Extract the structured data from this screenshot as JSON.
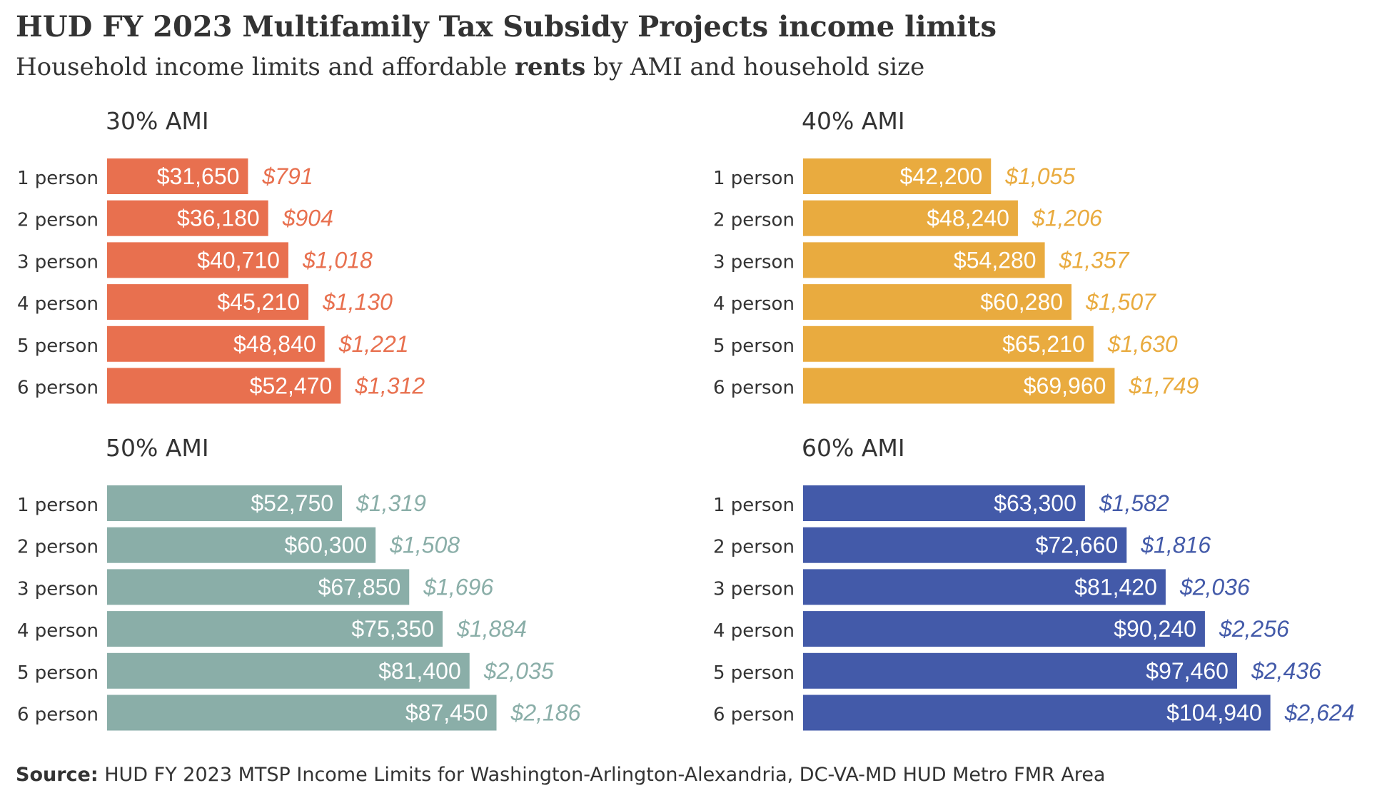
{
  "title": "HUD FY 2023 Multifamily Tax Subsidy Projects income limits",
  "subtitle": {
    "before": "Household income limits and affordable ",
    "bold": "rents",
    "after": " by AMI and household size"
  },
  "source": {
    "label": "Source:",
    "text": " HUD FY 2023 MTSP Income Limits for Washington-Arlington-Alexandria, DC-VA-MD HUD Metro FMR Area"
  },
  "chart_data": [
    {
      "type": "bar",
      "title": "30% AMI",
      "color": "#e8704f",
      "categories": [
        "1 person",
        "2 person",
        "3 person",
        "4 person",
        "5 person",
        "6 person"
      ],
      "series": [
        {
          "name": "",
          "values": [
            31650,
            36180,
            40710,
            45210,
            48840,
            52470
          ]
        },
        {
          "name": "",
          "values": [
            791,
            904,
            1018,
            1130,
            1221,
            1312
          ]
        }
      ],
      "labels": [
        "$31,650",
        "$36,180",
        "$40,710",
        "$45,210",
        "$48,840",
        "$52,470"
      ],
      "rent_labels": [
        "$791",
        "$904",
        "$1,018",
        "$1,130",
        "$1,221",
        "$1,312"
      ],
      "xlim": [
        0,
        105000
      ]
    },
    {
      "type": "bar",
      "title": "40% AMI",
      "color": "#e9ab3f",
      "categories": [
        "1 person",
        "2 person",
        "3 person",
        "4 person",
        "5 person",
        "6 person"
      ],
      "series": [
        {
          "name": "",
          "values": [
            42200,
            48240,
            54280,
            60280,
            65210,
            69960
          ]
        },
        {
          "name": "",
          "values": [
            1055,
            1206,
            1357,
            1507,
            1630,
            1749
          ]
        }
      ],
      "labels": [
        "$42,200",
        "$48,240",
        "$54,280",
        "$60,280",
        "$65,210",
        "$69,960"
      ],
      "rent_labels": [
        "$1,055",
        "$1,206",
        "$1,357",
        "$1,507",
        "$1,630",
        "$1,749"
      ],
      "xlim": [
        0,
        105000
      ]
    },
    {
      "type": "bar",
      "title": "50% AMI",
      "color": "#8aaea8",
      "categories": [
        "1 person",
        "2 person",
        "3 person",
        "4 person",
        "5 person",
        "6 person"
      ],
      "series": [
        {
          "name": "",
          "values": [
            52750,
            60300,
            67850,
            75350,
            81400,
            87450
          ]
        },
        {
          "name": "",
          "values": [
            1319,
            1508,
            1696,
            1884,
            2035,
            2186
          ]
        }
      ],
      "labels": [
        "$52,750",
        "$60,300",
        "$67,850",
        "$75,350",
        "$81,400",
        "$87,450"
      ],
      "rent_labels": [
        "$1,319",
        "$1,508",
        "$1,696",
        "$1,884",
        "$2,035",
        "$2,186"
      ],
      "xlim": [
        0,
        105000
      ]
    },
    {
      "type": "bar",
      "title": "60% AMI",
      "color": "#435aa9",
      "categories": [
        "1 person",
        "2 person",
        "3 person",
        "4 person",
        "5 person",
        "6 person"
      ],
      "series": [
        {
          "name": "",
          "values": [
            63300,
            72660,
            81420,
            90240,
            97460,
            104940
          ]
        },
        {
          "name": "",
          "values": [
            1582,
            1816,
            2036,
            2256,
            2436,
            2624
          ]
        }
      ],
      "labels": [
        "$63,300",
        "$72,660",
        "$81,420",
        "$90,240",
        "$97,460",
        "$104,940"
      ],
      "rent_labels": [
        "$1,582",
        "$1,816",
        "$2,036",
        "$2,256",
        "$2,436",
        "$2,624"
      ],
      "xlim": [
        0,
        105000
      ]
    }
  ]
}
